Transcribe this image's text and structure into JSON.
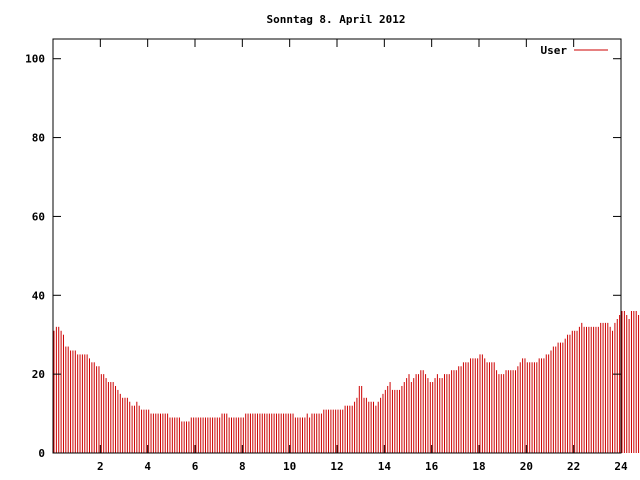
{
  "chart_data": {
    "type": "bar",
    "title": "Sonntag 8. April 2012",
    "xlabel": "",
    "ylabel": "",
    "xlim": [
      0,
      24
    ],
    "ylim": [
      0,
      105
    ],
    "xticks": [
      2,
      4,
      6,
      8,
      10,
      12,
      14,
      16,
      18,
      20,
      22,
      24
    ],
    "yticks": [
      0,
      20,
      40,
      60,
      80,
      100
    ],
    "grid": false,
    "legend_position": "top-right",
    "series": [
      {
        "name": "User",
        "color": "#cc0000",
        "x_step_hours": 0.1,
        "values": [
          31,
          32,
          32,
          31,
          30,
          27,
          27,
          26,
          26,
          26,
          25,
          25,
          25,
          25,
          25,
          24,
          23,
          23,
          22,
          22,
          20,
          20,
          19,
          18,
          18,
          18,
          17,
          16,
          15,
          14,
          14,
          14,
          13,
          12,
          12,
          13,
          12,
          11,
          11,
          11,
          11,
          10,
          10,
          10,
          10,
          10,
          10,
          10,
          10,
          9,
          9,
          9,
          9,
          9,
          8,
          8,
          8,
          8,
          9,
          9,
          9,
          9,
          9,
          9,
          9,
          9,
          9,
          9,
          9,
          9,
          9,
          10,
          10,
          10,
          9,
          9,
          9,
          9,
          9,
          9,
          9,
          10,
          10,
          10,
          10,
          10,
          10,
          10,
          10,
          10,
          10,
          10,
          10,
          10,
          10,
          10,
          10,
          10,
          10,
          10,
          10,
          10,
          9,
          9,
          9,
          9,
          9,
          10,
          9,
          10,
          10,
          10,
          10,
          10,
          11,
          11,
          11,
          11,
          11,
          11,
          11,
          11,
          11,
          12,
          12,
          12,
          12,
          13,
          14,
          17,
          17,
          14,
          14,
          13,
          13,
          13,
          12,
          13,
          14,
          15,
          16,
          17,
          18,
          16,
          16,
          16,
          16,
          17,
          18,
          19,
          20,
          18,
          19,
          20,
          20,
          21,
          21,
          20,
          19,
          18,
          18,
          19,
          20,
          19,
          19,
          20,
          20,
          20,
          21,
          21,
          21,
          22,
          22,
          23,
          23,
          23,
          24,
          24,
          24,
          24,
          25,
          25,
          24,
          23,
          23,
          23,
          23,
          21,
          20,
          20,
          20,
          21,
          21,
          21,
          21,
          21,
          22,
          23,
          24,
          24,
          23,
          23,
          23,
          23,
          23,
          24,
          24,
          24,
          25,
          25,
          26,
          27,
          27,
          28,
          28,
          28,
          29,
          30,
          30,
          31,
          31,
          31,
          32,
          33,
          32,
          32,
          32,
          32,
          32,
          32,
          32,
          33,
          33,
          33,
          33,
          32,
          31,
          33,
          34,
          35,
          36,
          36,
          35,
          34,
          36,
          36,
          36,
          35,
          35,
          35,
          35,
          34,
          36,
          36,
          36,
          34,
          33,
          31,
          30,
          29,
          29,
          28,
          28,
          27,
          28,
          29,
          29,
          30,
          31,
          30,
          29,
          27,
          27,
          28,
          28,
          27,
          27,
          28,
          29,
          30,
          31,
          30,
          30,
          31,
          30,
          30,
          30,
          30,
          30,
          27,
          26,
          26,
          27,
          27,
          27,
          27,
          27,
          27,
          27,
          27,
          27,
          27,
          26,
          27,
          26
        ]
      }
    ]
  }
}
